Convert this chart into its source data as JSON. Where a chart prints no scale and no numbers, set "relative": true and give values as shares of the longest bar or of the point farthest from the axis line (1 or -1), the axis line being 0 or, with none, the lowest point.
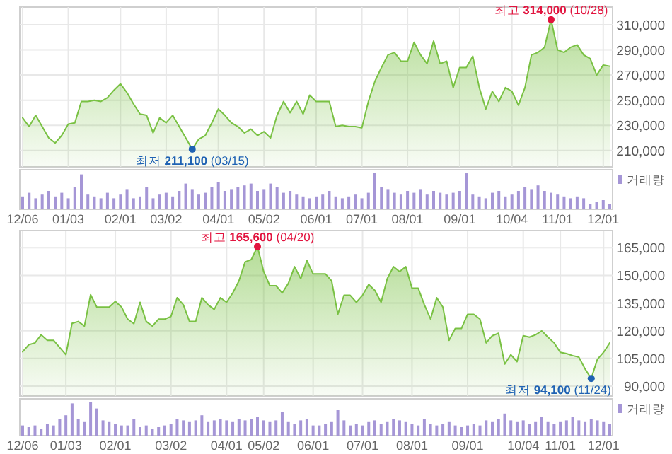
{
  "chart_data": [
    {
      "type": "area",
      "color": "#79c143",
      "categories": [
        null,
        null,
        null,
        null,
        null,
        null,
        null,
        null,
        null,
        null,
        null,
        null,
        null,
        null,
        null,
        null,
        null,
        null,
        null,
        null,
        null,
        null,
        null,
        null,
        null,
        null,
        null,
        null,
        null,
        null,
        null,
        null,
        null,
        null,
        null,
        null,
        null,
        null,
        null,
        null,
        null,
        null,
        null,
        null,
        null,
        null,
        null,
        null,
        null,
        null,
        null,
        null,
        null,
        null,
        null,
        null,
        null,
        null,
        null,
        null,
        null,
        null,
        null,
        null,
        null,
        null,
        null,
        null,
        null,
        null,
        null,
        null,
        null,
        null,
        null,
        null,
        null,
        null,
        null,
        null,
        null,
        null,
        null,
        null,
        null,
        null,
        null,
        null,
        null,
        null,
        null
      ],
      "values": [
        236000,
        229000,
        238000,
        229000,
        220000,
        216000,
        222000,
        231000,
        232000,
        249000,
        249000,
        250000,
        249000,
        252000,
        258000,
        263000,
        256000,
        247000,
        239000,
        238000,
        224000,
        236000,
        232000,
        238000,
        229000,
        220000,
        211100,
        219000,
        222000,
        232000,
        243000,
        238000,
        232000,
        229000,
        224000,
        227000,
        222000,
        225000,
        220000,
        238000,
        249000,
        240000,
        249000,
        239000,
        254000,
        249000,
        249000,
        249000,
        229000,
        230000,
        229000,
        229000,
        228000,
        249000,
        265000,
        276000,
        286000,
        288000,
        281000,
        281000,
        296000,
        286000,
        279000,
        297000,
        279000,
        281000,
        260000,
        276000,
        276000,
        285000,
        260000,
        243000,
        257000,
        249000,
        260000,
        257000,
        246000,
        260000,
        286000,
        288000,
        292000,
        314000,
        290000,
        288000,
        292000,
        294000,
        286000,
        283000,
        270000,
        278000,
        277000
      ],
      "ylim": [
        197000,
        324000
      ],
      "yticks": [
        {
          "value": 210000,
          "label": "210,000"
        },
        {
          "value": 230000,
          "label": "230,000"
        },
        {
          "value": 250000,
          "label": "250,000"
        },
        {
          "value": 270000,
          "label": "270,000"
        },
        {
          "value": 290000,
          "label": "290,000"
        },
        {
          "value": 310000,
          "label": "310,000"
        }
      ],
      "tick_labels": "y",
      "grid": true,
      "annotations": [
        {
          "text": "최고 314,000 (10/28)",
          "y": 314000
        },
        {
          "text": "최저 211,100 (03/15)",
          "y": 211100
        }
      ]
    },
    {
      "type": "bar",
      "relative": true,
      "categories": [
        "12/06",
        null,
        null,
        null,
        null,
        null,
        null,
        "01/03",
        null,
        null,
        null,
        null,
        null,
        null,
        null,
        "02/01",
        null,
        null,
        null,
        null,
        null,
        null,
        "03/02",
        null,
        null,
        null,
        null,
        null,
        null,
        null,
        "04/01",
        null,
        null,
        null,
        null,
        null,
        null,
        "05/02",
        null,
        null,
        null,
        null,
        null,
        null,
        null,
        "06/01",
        null,
        null,
        null,
        null,
        null,
        null,
        "07/01",
        null,
        null,
        null,
        null,
        null,
        null,
        "08/01",
        null,
        null,
        null,
        null,
        null,
        null,
        null,
        "09/01",
        null,
        null,
        null,
        null,
        null,
        null,
        null,
        "10/04",
        null,
        null,
        null,
        null,
        null,
        null,
        "11/01",
        null,
        null,
        null,
        null,
        null,
        null,
        "12/01",
        null
      ],
      "series": [
        {
          "name": "거래량",
          "color": "#a596d6",
          "values": [
            0.35,
            0.45,
            0.3,
            0.4,
            0.5,
            0.35,
            0.45,
            0.3,
            0.6,
            0.95,
            0.4,
            0.35,
            0.3,
            0.45,
            0.3,
            0.4,
            0.55,
            0.3,
            0.35,
            0.6,
            0.3,
            0.4,
            0.45,
            0.35,
            0.5,
            0.7,
            0.55,
            0.4,
            0.45,
            0.6,
            0.75,
            0.5,
            0.55,
            0.6,
            0.65,
            0.7,
            0.5,
            0.55,
            0.7,
            0.6,
            0.45,
            0.5,
            0.4,
            0.35,
            0.3,
            0.35,
            0.4,
            0.5,
            0.35,
            0.3,
            0.35,
            0.4,
            0.3,
            0.45,
            1.0,
            0.6,
            0.55,
            0.45,
            0.4,
            0.5,
            0.45,
            0.55,
            0.4,
            0.5,
            0.45,
            0.4,
            0.45,
            0.5,
            0.98,
            0.4,
            0.35,
            0.3,
            0.45,
            0.5,
            0.35,
            0.4,
            0.5,
            0.6,
            0.55,
            0.65,
            0.5,
            0.45,
            0.4,
            0.35,
            0.3,
            0.35,
            0.3,
            0.15,
            0.2,
            0.25,
            0.15
          ]
        }
      ],
      "tick_labels": "x",
      "legend": "top right"
    },
    {
      "type": "area",
      "color": "#79c143",
      "categories": [
        null,
        null,
        null,
        null,
        null,
        null,
        null,
        null,
        null,
        null,
        null,
        null,
        null,
        null,
        null,
        null,
        null,
        null,
        null,
        null,
        null,
        null,
        null,
        null,
        null,
        null,
        null,
        null,
        null,
        null,
        null,
        null,
        null,
        null,
        null,
        null,
        null,
        null,
        null,
        null,
        null,
        null,
        null,
        null,
        null,
        null,
        null,
        null,
        null,
        null,
        null,
        null,
        null,
        null,
        null,
        null,
        null,
        null,
        null,
        null,
        null,
        null,
        null,
        null,
        null,
        null,
        null,
        null,
        null,
        null,
        null,
        null,
        null,
        null,
        null,
        null,
        null,
        null,
        null,
        null,
        null,
        null,
        null,
        null,
        null,
        null,
        null,
        null,
        null,
        null,
        null,
        null,
        null,
        null,
        null,
        null
      ],
      "values": [
        108600,
        112400,
        113400,
        117800,
        114800,
        114800,
        110900,
        107000,
        124000,
        125000,
        122500,
        139500,
        132800,
        132800,
        132800,
        135900,
        132800,
        126300,
        123800,
        135400,
        125000,
        122500,
        126300,
        126300,
        127700,
        137900,
        134100,
        125000,
        125000,
        137900,
        134100,
        131500,
        137900,
        135400,
        140500,
        147000,
        157300,
        158600,
        165600,
        152100,
        144400,
        144400,
        140500,
        145700,
        154700,
        148200,
        158000,
        150800,
        150800,
        150800,
        147000,
        128900,
        139200,
        139200,
        135400,
        139200,
        145100,
        141800,
        135400,
        148200,
        154700,
        152100,
        154700,
        143100,
        143100,
        134100,
        126300,
        137900,
        132800,
        114800,
        121200,
        121200,
        128900,
        128900,
        126300,
        113400,
        117300,
        118600,
        101900,
        107000,
        103200,
        117300,
        116500,
        117800,
        119900,
        116500,
        113400,
        108300,
        107600,
        106500,
        105700,
        99300,
        94100,
        104500,
        108300,
        113400
      ],
      "ylim": [
        84600,
        174300
      ],
      "yticks": [
        {
          "value": 90000,
          "label": "90,000"
        },
        {
          "value": 105000,
          "label": "105,000"
        },
        {
          "value": 120000,
          "label": "120,000"
        },
        {
          "value": 135000,
          "label": "135,000"
        },
        {
          "value": 150000,
          "label": "150,000"
        },
        {
          "value": 165000,
          "label": "165,000"
        }
      ],
      "tick_labels": "y",
      "grid": true,
      "annotations": [
        {
          "text": "최고 165,600 (04/20)",
          "y": 165600
        },
        "최저 94,100 (11/24)"
      ]
    },
    {
      "type": "bar",
      "relative": true,
      "categories": [
        "12/06",
        null,
        null,
        null,
        null,
        null,
        null,
        "01/03",
        null,
        null,
        null,
        null,
        null,
        null,
        null,
        "02/01",
        null,
        null,
        null,
        null,
        null,
        null,
        null,
        null,
        "03/02",
        null,
        null,
        null,
        null,
        null,
        null,
        null,
        null,
        "04/01",
        null,
        null,
        null,
        null,
        null,
        "05/02",
        null,
        null,
        null,
        null,
        null,
        null,
        null,
        "06/01",
        null,
        null,
        null,
        null,
        null,
        null,
        null,
        "07/01",
        null,
        null,
        null,
        null,
        null,
        null,
        null,
        "08/01",
        null,
        null,
        null,
        null,
        null,
        null,
        null,
        null,
        "09/01",
        null,
        null,
        null,
        null,
        null,
        null,
        null,
        null,
        "10/04",
        null,
        null,
        null,
        null,
        null,
        "11/01",
        null,
        null,
        null,
        null,
        null,
        null,
        "12/01",
        null
      ],
      "series": [
        {
          "name": "거래량",
          "color": "#a596d6",
          "values": [
            0.3,
            0.25,
            0.3,
            0.2,
            0.35,
            0.3,
            0.5,
            0.6,
            0.95,
            0.5,
            0.4,
            1.0,
            0.8,
            0.45,
            0.4,
            0.35,
            0.3,
            0.3,
            0.5,
            0.25,
            0.3,
            0.2,
            0.25,
            0.3,
            0.35,
            0.5,
            0.45,
            0.4,
            0.45,
            0.6,
            0.4,
            0.45,
            0.5,
            0.45,
            0.4,
            0.5,
            0.45,
            0.5,
            0.55,
            0.45,
            0.4,
            0.45,
            0.7,
            0.4,
            0.35,
            0.45,
            0.5,
            0.3,
            0.3,
            0.35,
            0.4,
            0.75,
            0.45,
            0.3,
            0.35,
            0.3,
            0.4,
            0.45,
            0.35,
            0.4,
            0.5,
            0.45,
            0.4,
            0.35,
            0.3,
            0.5,
            0.35,
            0.3,
            0.35,
            0.4,
            0.3,
            0.25,
            0.3,
            0.35,
            0.3,
            0.45,
            0.4,
            0.5,
            0.65,
            0.45,
            0.4,
            0.45,
            0.35,
            0.4,
            0.55,
            0.4,
            0.35,
            0.4,
            0.45,
            0.55,
            0.45,
            0.4,
            0.5,
            0.45,
            0.4,
            0.35
          ]
        }
      ],
      "tick_labels": "x",
      "legend": "top right"
    }
  ]
}
